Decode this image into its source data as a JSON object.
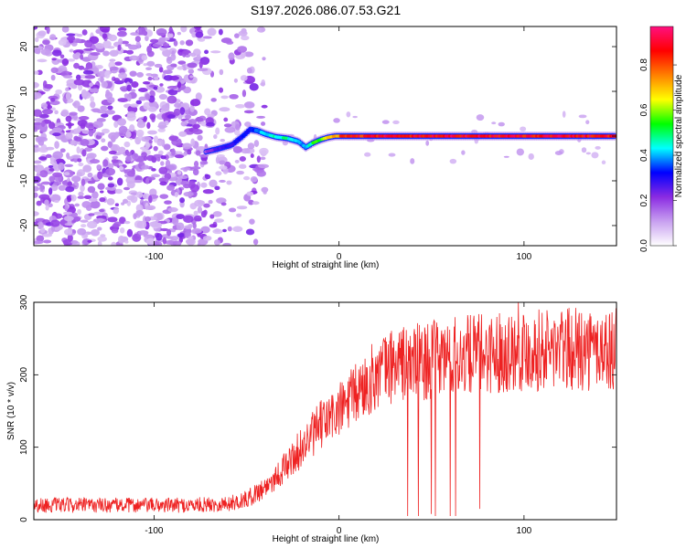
{
  "chart_data": [
    {
      "type": "heatmap",
      "title": "S197.2026.086.07.53.G21",
      "xlabel": "Height of straight line (km)",
      "ylabel": "Frequency (Hz)",
      "xlim": [
        -165,
        150
      ],
      "ylim": [
        -24.5,
        24.5
      ],
      "xticks": [
        -100,
        0,
        100
      ],
      "yticks": [
        -20,
        -10,
        0,
        10,
        20
      ],
      "colorbar": {
        "label": "Normalized spectral amplitude",
        "range": [
          0,
          0.97
        ],
        "ticks": [
          "0.0",
          "0.2",
          "0.4",
          "0.6",
          "0.8"
        ],
        "colors": [
          "#ffffff",
          "#c8a0f0",
          "#8a2be2",
          "#0000ff",
          "#00ffff",
          "#00ff00",
          "#ffff00",
          "#ff8000",
          "#ff0000",
          "#ff1080"
        ]
      },
      "ridge": {
        "x": [
          -72,
          -65,
          -58,
          -52,
          -48,
          -44,
          -40,
          -34,
          -28,
          -22,
          -18,
          -14,
          -10,
          -6,
          -2,
          5,
          20,
          60,
          100,
          150
        ],
        "y": [
          -3.5,
          -2.8,
          -2.0,
          0.0,
          1.5,
          1.2,
          0.5,
          -0.2,
          -0.5,
          -1.2,
          -2.5,
          -1.5,
          -0.8,
          -0.3,
          0.0,
          0.0,
          0.0,
          0.0,
          0.0,
          0.0
        ],
        "amplitude": [
          0.2,
          0.3,
          0.3,
          0.35,
          0.35,
          0.4,
          0.45,
          0.5,
          0.5,
          0.45,
          0.4,
          0.55,
          0.6,
          0.7,
          0.8,
          0.9,
          0.95,
          0.95,
          0.95,
          0.95
        ]
      }
    },
    {
      "type": "line",
      "xlabel": "Height of straight line (km)",
      "ylabel": "SNR (10 * v/v)",
      "xlim": [
        -165,
        150
      ],
      "ylim": [
        0,
        300
      ],
      "xticks": [
        -100,
        0,
        100
      ],
      "yticks": [
        0,
        100,
        200,
        300
      ],
      "color": "#ee2222",
      "trend": {
        "x": [
          -165,
          -80,
          -60,
          -50,
          -40,
          -30,
          -20,
          -10,
          0,
          10,
          20,
          30,
          50,
          60,
          80,
          100,
          150
        ],
        "y": [
          20,
          20,
          22,
          28,
          45,
          70,
          100,
          130,
          150,
          175,
          200,
          215,
          220,
          225,
          230,
          235,
          235
        ]
      },
      "dips": [
        {
          "x": 37,
          "y": 5
        },
        {
          "x": 43,
          "y": 5
        },
        {
          "x": 50,
          "y": 8
        },
        {
          "x": 52,
          "y": 5
        },
        {
          "x": 60,
          "y": 5
        },
        {
          "x": 63,
          "y": 5
        },
        {
          "x": 76,
          "y": 15
        }
      ],
      "spikes": [
        {
          "x": 97,
          "y": 300
        },
        {
          "x": 131,
          "y": 285
        }
      ]
    }
  ]
}
